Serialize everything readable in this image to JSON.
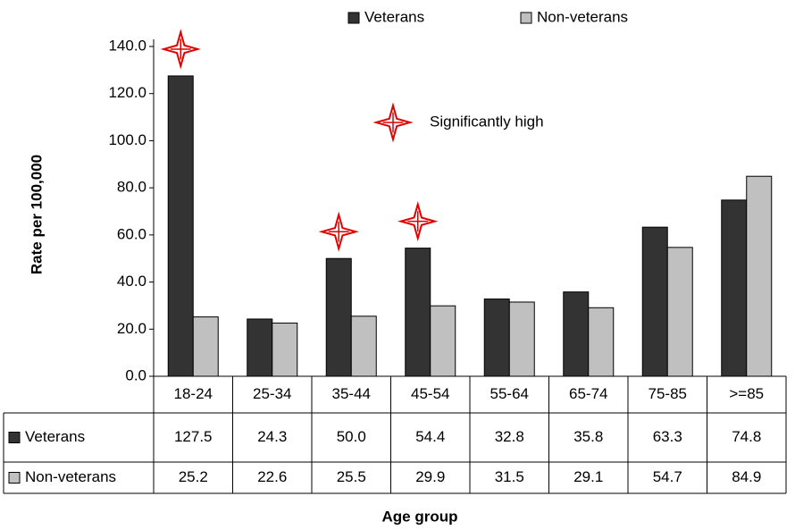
{
  "chart_data": {
    "type": "bar",
    "y_label": "Rate per 100,000",
    "x_label": "Age group",
    "categories": [
      "18-24",
      "25-34",
      "35-44",
      "45-54",
      "55-64",
      "65-74",
      "75-85",
      ">=85"
    ],
    "series": [
      {
        "name": "Veterans",
        "color": "#333333",
        "values": [
          127.5,
          24.3,
          50.0,
          54.4,
          32.8,
          35.8,
          63.3,
          74.8
        ],
        "value_labels": [
          "127.5",
          "24.3",
          "50.0",
          "54.4",
          "32.8",
          "35.8",
          "63.3",
          "74.8"
        ]
      },
      {
        "name": "Non-veterans",
        "color": "#c0c0c0",
        "values": [
          25.2,
          22.6,
          25.5,
          29.9,
          31.5,
          29.1,
          54.7,
          84.9
        ],
        "value_labels": [
          "25.2",
          "22.6",
          "25.5",
          "29.9",
          "31.5",
          "29.1",
          "54.7",
          "84.9"
        ]
      }
    ],
    "ylim": [
      0,
      140
    ],
    "yticks": [
      {
        "value": 0,
        "label": "0.0"
      },
      {
        "value": 20,
        "label": "20.0"
      },
      {
        "value": 40,
        "label": "40.0"
      },
      {
        "value": 60,
        "label": "60.0"
      },
      {
        "value": 80,
        "label": "80.0"
      },
      {
        "value": 100,
        "label": "100.0"
      },
      {
        "value": 120,
        "label": "120.0"
      },
      {
        "value": 140,
        "label": "140.0"
      }
    ],
    "grid": false,
    "markers": {
      "label": "Significantly high",
      "color": "#e00000",
      "categories": [
        "18-24",
        "35-44",
        "45-54"
      ]
    }
  }
}
